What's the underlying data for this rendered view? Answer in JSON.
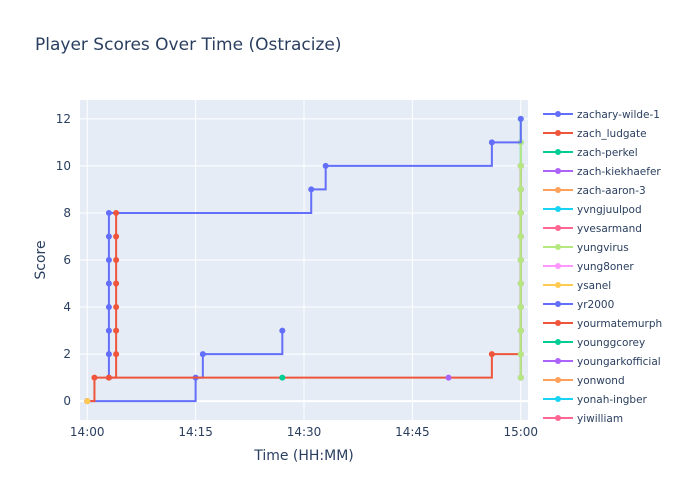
{
  "chart_data": {
    "type": "line",
    "line_shape": "step",
    "title": "Player Scores Over Time (Ostracize)",
    "xlabel": "Time (HH:MM)",
    "ylabel": "Score",
    "x_ticks": [
      "14:00",
      "14:15",
      "14:30",
      "14:45",
      "15:00"
    ],
    "y_ticks": [
      0,
      2,
      4,
      6,
      8,
      10,
      12
    ],
    "xlim": [
      "13:59",
      "15:01"
    ],
    "ylim": [
      -0.8,
      12.8
    ],
    "grid": true,
    "legend_position": "right",
    "series": [
      {
        "name": "zachary-wilde-1",
        "color": "#636efa",
        "points": [
          [
            "14:00",
            0
          ],
          [
            "14:15",
            1
          ],
          [
            "14:16",
            2
          ],
          [
            "14:27",
            3
          ]
        ]
      },
      {
        "name": "zach_ludgate",
        "color": "#ef553b",
        "points": [
          [
            "14:00",
            0
          ],
          [
            "14:01",
            1
          ],
          [
            "14:56",
            2
          ],
          [
            "15:00",
            3
          ],
          [
            "15:00",
            4
          ],
          [
            "15:00",
            5
          ],
          [
            "15:00",
            6
          ],
          [
            "15:00",
            7
          ],
          [
            "15:00",
            8
          ],
          [
            "15:00",
            9
          ],
          [
            "15:00",
            10
          ]
        ]
      },
      {
        "name": "zach-perkel",
        "color": "#00cc96",
        "points": [
          [
            "14:27",
            1
          ]
        ]
      },
      {
        "name": "zach-kiekhaefer",
        "color": "#ab63fa",
        "points": [
          [
            "14:50",
            1
          ]
        ]
      },
      {
        "name": "zach-aaron-3",
        "color": "#ffa15a",
        "points": [
          [
            "14:00",
            0
          ]
        ]
      },
      {
        "name": "yvngjuulpod",
        "color": "#19d3f3",
        "points": [
          [
            "15:00",
            1
          ],
          [
            "15:00",
            2
          ],
          [
            "15:00",
            3
          ],
          [
            "15:00",
            4
          ],
          [
            "15:00",
            5
          ],
          [
            "15:00",
            6
          ],
          [
            "15:00",
            7
          ],
          [
            "15:00",
            8
          ],
          [
            "15:00",
            9
          ],
          [
            "15:00",
            10
          ],
          [
            "15:00",
            11
          ],
          [
            "15:00",
            12
          ]
        ]
      },
      {
        "name": "yvesarmand",
        "color": "#ff6692",
        "points": [
          [
            "15:00",
            1
          ],
          [
            "15:00",
            2
          ],
          [
            "15:00",
            3
          ],
          [
            "15:00",
            4
          ],
          [
            "15:00",
            5
          ],
          [
            "15:00",
            6
          ],
          [
            "15:00",
            7
          ],
          [
            "15:00",
            8
          ],
          [
            "15:00",
            9
          ],
          [
            "15:00",
            10
          ]
        ]
      },
      {
        "name": "yungvirus",
        "color": "#b6e880",
        "points": [
          [
            "15:00",
            1
          ],
          [
            "15:00",
            2
          ],
          [
            "15:00",
            3
          ],
          [
            "15:00",
            4
          ],
          [
            "15:00",
            5
          ],
          [
            "15:00",
            6
          ],
          [
            "15:00",
            7
          ],
          [
            "15:00",
            8
          ],
          [
            "15:00",
            9
          ],
          [
            "15:00",
            10
          ],
          [
            "15:00",
            11
          ],
          [
            "15:00",
            12
          ]
        ]
      },
      {
        "name": "yung8oner",
        "color": "#ff97ff",
        "points": [
          [
            "14:00",
            0
          ]
        ]
      },
      {
        "name": "ysanel",
        "color": "#fecb52",
        "points": [
          [
            "14:00",
            0
          ]
        ]
      },
      {
        "name": "yr2000",
        "color": "#636efa",
        "points": [
          [
            "14:03",
            1
          ],
          [
            "14:03",
            2
          ],
          [
            "14:03",
            3
          ],
          [
            "14:03",
            4
          ],
          [
            "14:03",
            5
          ],
          [
            "14:03",
            6
          ],
          [
            "14:03",
            7
          ],
          [
            "14:03",
            8
          ],
          [
            "14:31",
            9
          ],
          [
            "14:33",
            10
          ],
          [
            "14:56",
            11
          ],
          [
            "15:00",
            12
          ]
        ]
      },
      {
        "name": "yourmatemurph",
        "color": "#ef553b",
        "points": [
          [
            "14:03",
            1
          ],
          [
            "14:04",
            2
          ],
          [
            "14:04",
            3
          ],
          [
            "14:04",
            4
          ],
          [
            "14:04",
            5
          ],
          [
            "14:04",
            6
          ],
          [
            "14:04",
            7
          ],
          [
            "14:04",
            8
          ]
        ]
      },
      {
        "name": "younggcorey",
        "color": "#00cc96",
        "points": []
      },
      {
        "name": "youngarkofficial",
        "color": "#ab63fa",
        "points": []
      },
      {
        "name": "yonwond",
        "color": "#ffa15a",
        "points": []
      },
      {
        "name": "yonah-ingber",
        "color": "#19d3f3",
        "points": []
      },
      {
        "name": "yiwilliam",
        "color": "#ff6692",
        "points": []
      }
    ]
  }
}
